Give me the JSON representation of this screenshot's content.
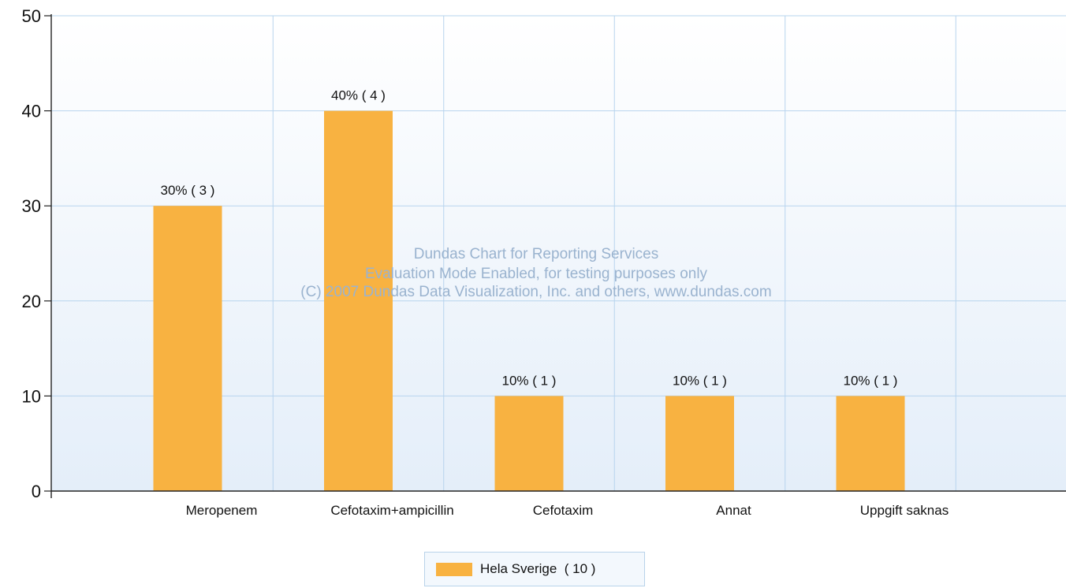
{
  "chart_data": {
    "type": "bar",
    "categories": [
      "Meropenem",
      "Cefotaxim+ampicillin",
      "Cefotaxim",
      "Annat",
      "Uppgift saknas"
    ],
    "series": [
      {
        "name": "Hela Sverige  ( 10 )",
        "values": [
          30,
          40,
          10,
          10,
          10
        ]
      }
    ],
    "data_labels": [
      "30% ( 3 )",
      "40% ( 4 )",
      "10% ( 1 )",
      "10% ( 1 )",
      "10% ( 1 )"
    ],
    "ylim": [
      0,
      50
    ],
    "yticks": [
      "0",
      "10",
      "20",
      "30",
      "40",
      "50"
    ],
    "grid": true,
    "legend_position": "bottom-center",
    "bar_color": "#f8b241",
    "watermark": [
      "Dundas Chart for Reporting Services",
      "Evaluation Mode Enabled, for testing purposes only",
      "(C) 2007 Dundas Data Visualization, Inc. and others, www.dundas.com"
    ]
  }
}
